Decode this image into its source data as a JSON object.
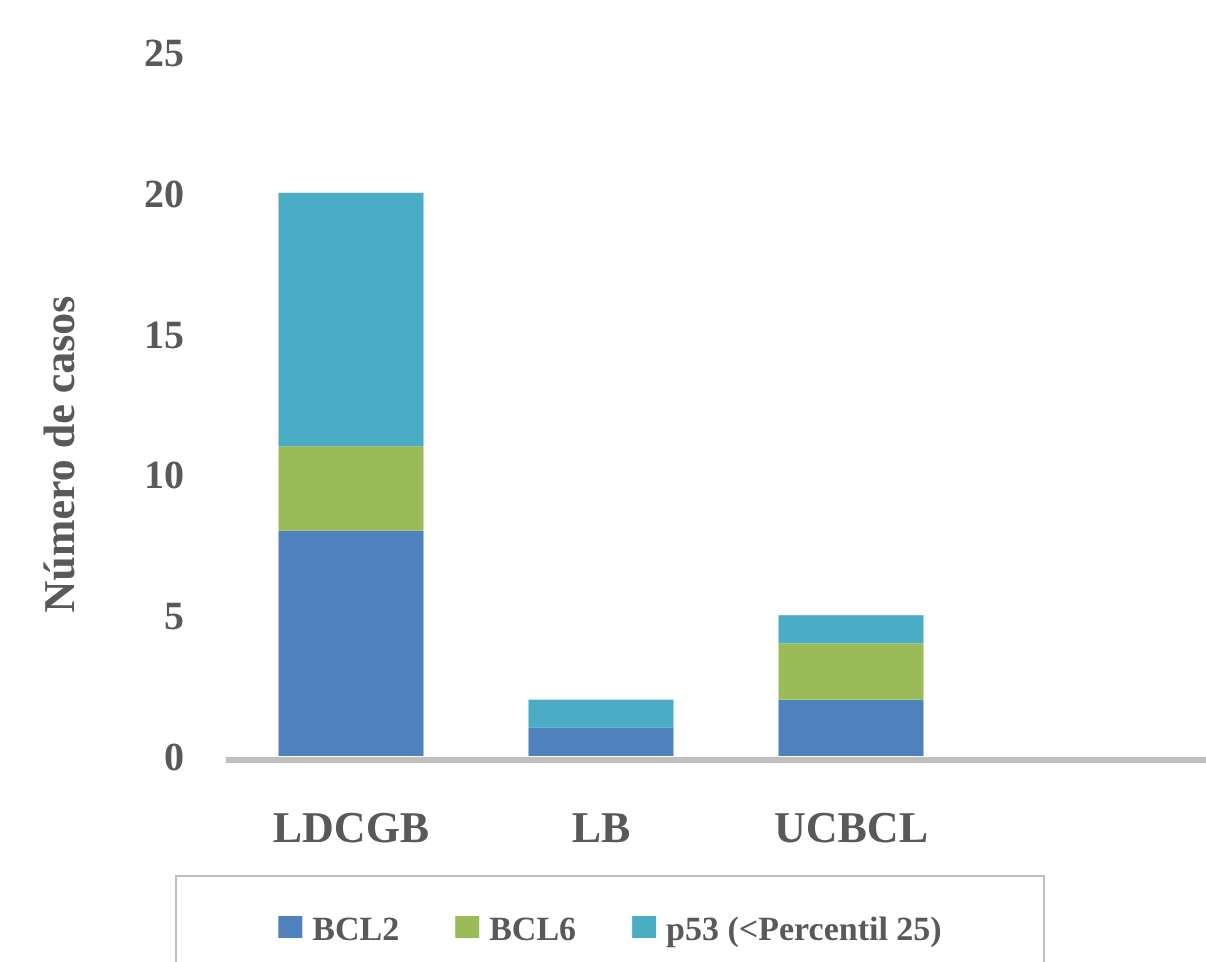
{
  "chart_data": {
    "type": "bar",
    "stacked": true,
    "ylabel": "Número de casos",
    "categories": [
      "LDCGB",
      "LB",
      "UCBCL",
      null
    ],
    "series": [
      {
        "name": "BCL2",
        "color": "#4f81bd",
        "values": [
          8,
          1,
          2,
          null
        ]
      },
      {
        "name": "BCL6",
        "color": "#9bbb59",
        "values": [
          3,
          0,
          2,
          null
        ]
      },
      {
        "name": "p53 (<Percentil 25)",
        "color": "#4bacc6",
        "values": [
          9,
          1,
          1,
          null
        ]
      }
    ],
    "ylim": [
      0,
      25
    ],
    "yticks": [
      0,
      5,
      10,
      15,
      20,
      25
    ],
    "grid": false,
    "legend": "bottom"
  }
}
